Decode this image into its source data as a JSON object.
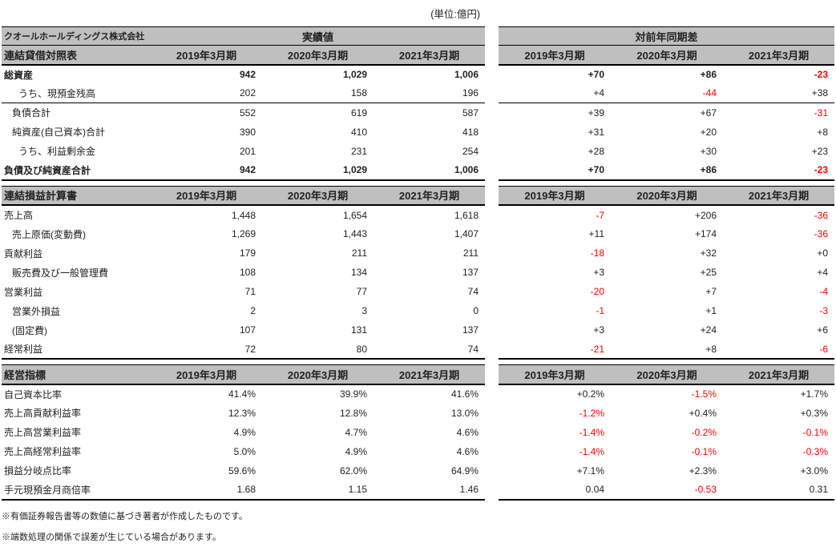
{
  "unit_label": "(単位:億円)",
  "company": "クオールホールディングス株式会社",
  "actual_header": "実績値",
  "diff_header": "対前年同期差",
  "years": [
    "2019年3月期",
    "2020年3月期",
    "2021年3月期"
  ],
  "colors": {
    "header_gray": "#bfbfbf",
    "negative_red": "#ff0000"
  },
  "sections": [
    {
      "title": "連結貸借対照表",
      "rows": [
        {
          "label": "総資産",
          "indent": 0,
          "bold": true,
          "sep": false,
          "actual": [
            "942",
            "1,029",
            "1,006"
          ],
          "diff": [
            "+70",
            "+86",
            "-23"
          ]
        },
        {
          "label": "うち、現預金残高",
          "indent": 2,
          "bold": false,
          "sep": true,
          "actual": [
            "202",
            "158",
            "196"
          ],
          "diff": [
            "+4",
            "-44",
            "+38"
          ]
        },
        {
          "label": "負債合計",
          "indent": 1,
          "bold": false,
          "sep": false,
          "actual": [
            "552",
            "619",
            "587"
          ],
          "diff": [
            "+39",
            "+67",
            "-31"
          ]
        },
        {
          "label": "純資産(自己資本)合計",
          "indent": 1,
          "bold": false,
          "sep": false,
          "actual": [
            "390",
            "410",
            "418"
          ],
          "diff": [
            "+31",
            "+20",
            "+8"
          ]
        },
        {
          "label": "うち、利益剰余金",
          "indent": 2,
          "bold": false,
          "sep": false,
          "actual": [
            "201",
            "231",
            "254"
          ],
          "diff": [
            "+28",
            "+30",
            "+23"
          ]
        },
        {
          "label": "負債及び純資産合計",
          "indent": 0,
          "bold": true,
          "sep": false,
          "actual": [
            "942",
            "1,029",
            "1,006"
          ],
          "diff": [
            "+70",
            "+86",
            "-23"
          ]
        }
      ]
    },
    {
      "title": "連結損益計算書",
      "rows": [
        {
          "label": "売上高",
          "indent": 0,
          "bold": false,
          "sep": false,
          "actual": [
            "1,448",
            "1,654",
            "1,618"
          ],
          "diff": [
            "-7",
            "+206",
            "-36"
          ]
        },
        {
          "label": "売上原価(変動費)",
          "indent": 1,
          "bold": false,
          "sep": false,
          "actual": [
            "1,269",
            "1,443",
            "1,407"
          ],
          "diff": [
            "+11",
            "+174",
            "-36"
          ]
        },
        {
          "label": "貢献利益",
          "indent": 0,
          "bold": false,
          "sep": false,
          "actual": [
            "179",
            "211",
            "211"
          ],
          "diff": [
            "-18",
            "+32",
            "+0"
          ]
        },
        {
          "label": "販売費及び一般管理費",
          "indent": 1,
          "bold": false,
          "sep": false,
          "actual": [
            "108",
            "134",
            "137"
          ],
          "diff": [
            "+3",
            "+25",
            "+4"
          ]
        },
        {
          "label": "営業利益",
          "indent": 0,
          "bold": false,
          "sep": false,
          "actual": [
            "71",
            "77",
            "74"
          ],
          "diff": [
            "-20",
            "+7",
            "-4"
          ]
        },
        {
          "label": "営業外損益",
          "indent": 1,
          "bold": false,
          "sep": false,
          "actual": [
            "2",
            "3",
            "0"
          ],
          "diff": [
            "-1",
            "+1",
            "-3"
          ]
        },
        {
          "label": "(固定費)",
          "indent": 1,
          "bold": false,
          "sep": false,
          "actual": [
            "107",
            "131",
            "137"
          ],
          "diff": [
            "+3",
            "+24",
            "+6"
          ]
        },
        {
          "label": "経常利益",
          "indent": 0,
          "bold": false,
          "sep": false,
          "actual": [
            "72",
            "80",
            "74"
          ],
          "diff": [
            "-21",
            "+8",
            "-6"
          ]
        }
      ]
    },
    {
      "title": "経営指標",
      "rows": [
        {
          "label": "自己資本比率",
          "indent": 0,
          "bold": false,
          "sep": false,
          "actual": [
            "41.4%",
            "39.9%",
            "41.6%"
          ],
          "diff": [
            "+0.2%",
            "-1.5%",
            "+1.7%"
          ]
        },
        {
          "label": "売上高貢献利益率",
          "indent": 0,
          "bold": false,
          "sep": false,
          "actual": [
            "12.3%",
            "12.8%",
            "13.0%"
          ],
          "diff": [
            "-1.2%",
            "+0.4%",
            "+0.3%"
          ]
        },
        {
          "label": "売上高営業利益率",
          "indent": 0,
          "bold": false,
          "sep": false,
          "actual": [
            "4.9%",
            "4.7%",
            "4.6%"
          ],
          "diff": [
            "-1.4%",
            "-0.2%",
            "-0.1%"
          ]
        },
        {
          "label": "売上高経常利益率",
          "indent": 0,
          "bold": false,
          "sep": false,
          "actual": [
            "5.0%",
            "4.9%",
            "4.6%"
          ],
          "diff": [
            "-1.4%",
            "-0.1%",
            "-0.3%"
          ]
        },
        {
          "label": "損益分岐点比率",
          "indent": 0,
          "bold": false,
          "sep": false,
          "actual": [
            "59.6%",
            "62.0%",
            "64.9%"
          ],
          "diff": [
            "+7.1%",
            "+2.3%",
            "+3.0%"
          ]
        },
        {
          "label": "手元現預金月商倍率",
          "indent": 0,
          "bold": false,
          "sep": false,
          "actual": [
            "1.68",
            "1.15",
            "1.46"
          ],
          "diff": [
            "0.04",
            "-0.53",
            "0.31"
          ]
        }
      ]
    }
  ],
  "footnotes": [
    "※有価証券報告書等の数値に基づき著者が作成したものです。",
    "※端数処理の関係で誤差が生じている場合があります。"
  ]
}
